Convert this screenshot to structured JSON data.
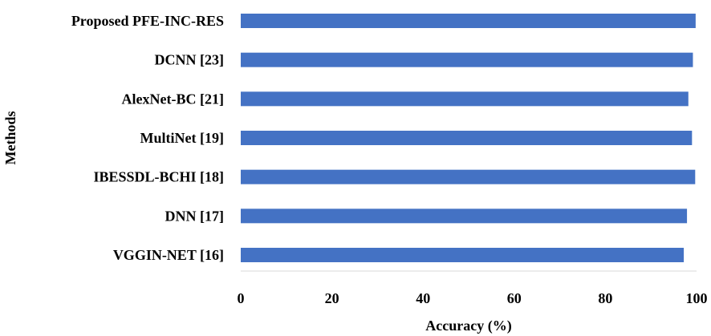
{
  "chart_data": {
    "type": "bar",
    "orientation": "horizontal",
    "categories": [
      "Proposed PFE-INC-RES",
      "DCNN [23]",
      "AlexNet-BC [21]",
      "MultiNet [19]",
      "IBESSDL-BCHI [18]",
      "DNN [17]",
      "VGGIN-NET [16]"
    ],
    "values": [
      99.8,
      99.2,
      98.2,
      99.0,
      99.7,
      97.9,
      97.2
    ],
    "xlabel": "Accuracy (%)",
    "ylabel": "Methods",
    "xlim": [
      0,
      100
    ],
    "xticks": [
      0,
      20,
      40,
      60,
      80,
      100
    ],
    "grid": false,
    "legend": "none",
    "bar_color": "#4472c4"
  }
}
